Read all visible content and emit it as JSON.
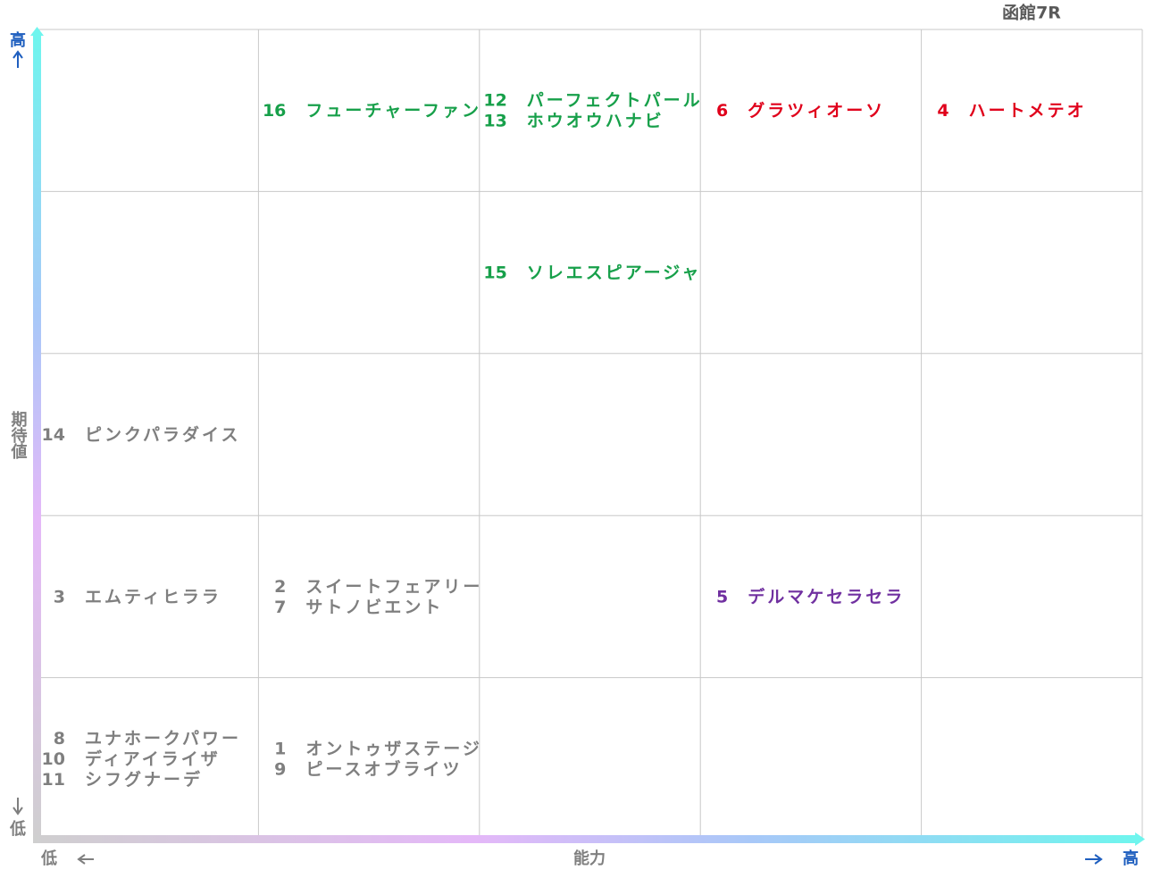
{
  "title": "函館7R",
  "y_axis": {
    "label": "期待値",
    "high": "高",
    "low": "低"
  },
  "x_axis": {
    "label": "能力",
    "low": "低",
    "high": "高"
  },
  "rows": [
    [
      {
        "color": "#7f7f7f",
        "entries": []
      },
      {
        "color": "#17a04a",
        "entries": [
          {
            "number": "16",
            "name": "フューチャーファン"
          }
        ]
      },
      {
        "color": "#17a04a",
        "entries": [
          {
            "number": "12",
            "name": "パーフェクトパール"
          },
          {
            "number": "13",
            "name": "ホウオウハナビ"
          }
        ]
      },
      {
        "color": "#e0001b",
        "entries": [
          {
            "number": "6",
            "name": "グラツィオーソ"
          }
        ]
      },
      {
        "color": "#e0001b",
        "entries": [
          {
            "number": "4",
            "name": "ハートメテオ"
          }
        ]
      }
    ],
    [
      {
        "color": "#7f7f7f",
        "entries": []
      },
      {
        "color": "#7f7f7f",
        "entries": []
      },
      {
        "color": "#17a04a",
        "entries": [
          {
            "number": "15",
            "name": "ソレエスピアージャ"
          }
        ]
      },
      {
        "color": "#7f7f7f",
        "entries": []
      },
      {
        "color": "#7f7f7f",
        "entries": []
      }
    ],
    [
      {
        "color": "#7f7f7f",
        "entries": [
          {
            "number": "14",
            "name": "ピンクパラダイス"
          }
        ]
      },
      {
        "color": "#7f7f7f",
        "entries": []
      },
      {
        "color": "#7f7f7f",
        "entries": []
      },
      {
        "color": "#7f7f7f",
        "entries": []
      },
      {
        "color": "#7f7f7f",
        "entries": []
      }
    ],
    [
      {
        "color": "#7f7f7f",
        "entries": [
          {
            "number": "3",
            "name": "エムティヒララ"
          }
        ]
      },
      {
        "color": "#7f7f7f",
        "entries": [
          {
            "number": "2",
            "name": "スイートフェアリー"
          },
          {
            "number": "7",
            "name": "サトノビエント"
          }
        ]
      },
      {
        "color": "#7f7f7f",
        "entries": []
      },
      {
        "color": "#7030a0",
        "entries": [
          {
            "number": "5",
            "name": "デルマケセラセラ"
          }
        ]
      },
      {
        "color": "#7f7f7f",
        "entries": []
      }
    ],
    [
      {
        "color": "#7f7f7f",
        "entries": [
          {
            "number": "8",
            "name": "ユナホークパワー"
          },
          {
            "number": "10",
            "name": "ディアイライザ"
          },
          {
            "number": "11",
            "name": "シフグナーデ"
          }
        ]
      },
      {
        "color": "#7f7f7f",
        "entries": [
          {
            "number": "1",
            "name": "オントゥザステージ"
          },
          {
            "number": "9",
            "name": "ピースオブライツ"
          }
        ]
      },
      {
        "color": "#7f7f7f",
        "entries": []
      },
      {
        "color": "#7f7f7f",
        "entries": []
      },
      {
        "color": "#7f7f7f",
        "entries": []
      }
    ]
  ]
}
